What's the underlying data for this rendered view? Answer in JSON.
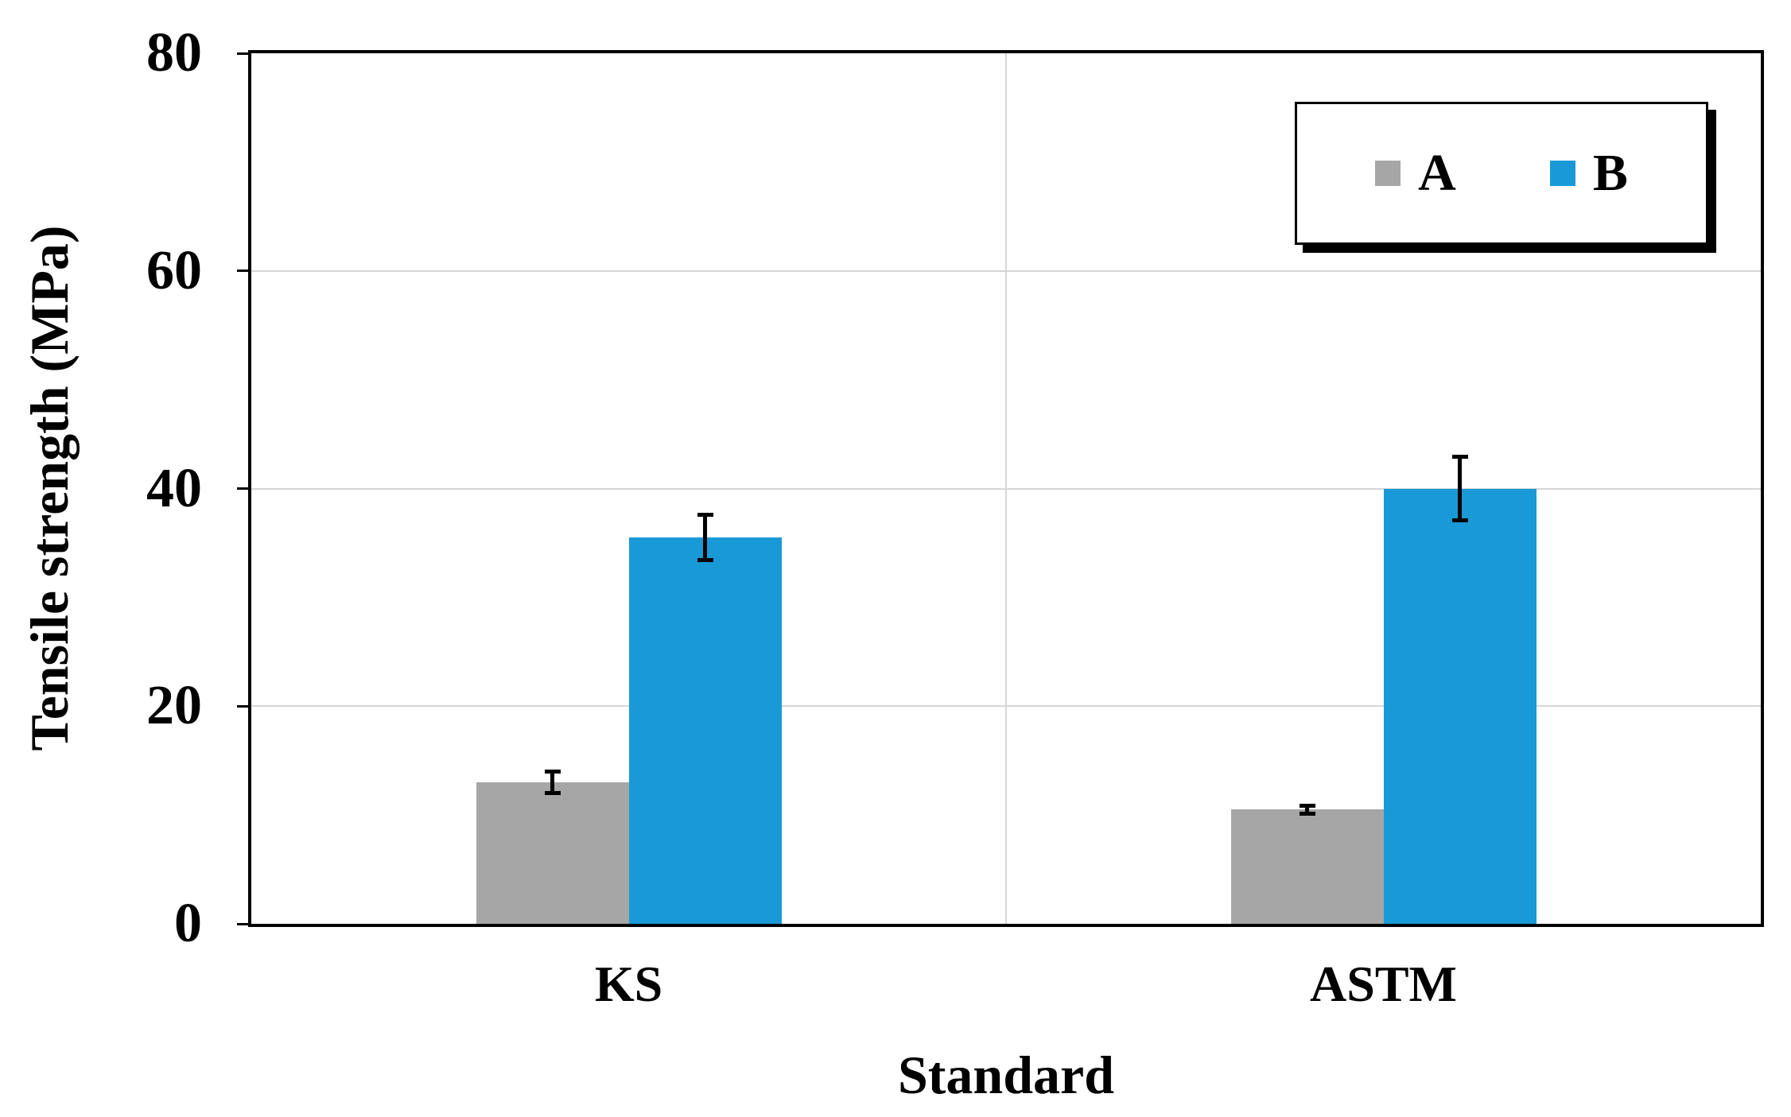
{
  "chart_data": {
    "type": "bar",
    "title": "",
    "xlabel": "Standard",
    "ylabel": "Tensile strength (MPa)",
    "categories": [
      "KS",
      "ASTM"
    ],
    "series": [
      {
        "name": "A",
        "color": "#a6a6a6",
        "values": [
          13,
          10.5
        ],
        "errors": [
          1.0,
          0.35
        ]
      },
      {
        "name": "B",
        "color": "#199ad7",
        "values": [
          35.5,
          40
        ],
        "errors": [
          2.1,
          2.9
        ]
      }
    ],
    "ylim": [
      0,
      80
    ],
    "yticks": [
      0,
      20,
      40,
      60,
      80
    ],
    "grid": true,
    "legend_position": "top-right",
    "axis_color": "#000000",
    "gridline_color": "#d6d6d6",
    "error_bar_color": "#000000"
  }
}
